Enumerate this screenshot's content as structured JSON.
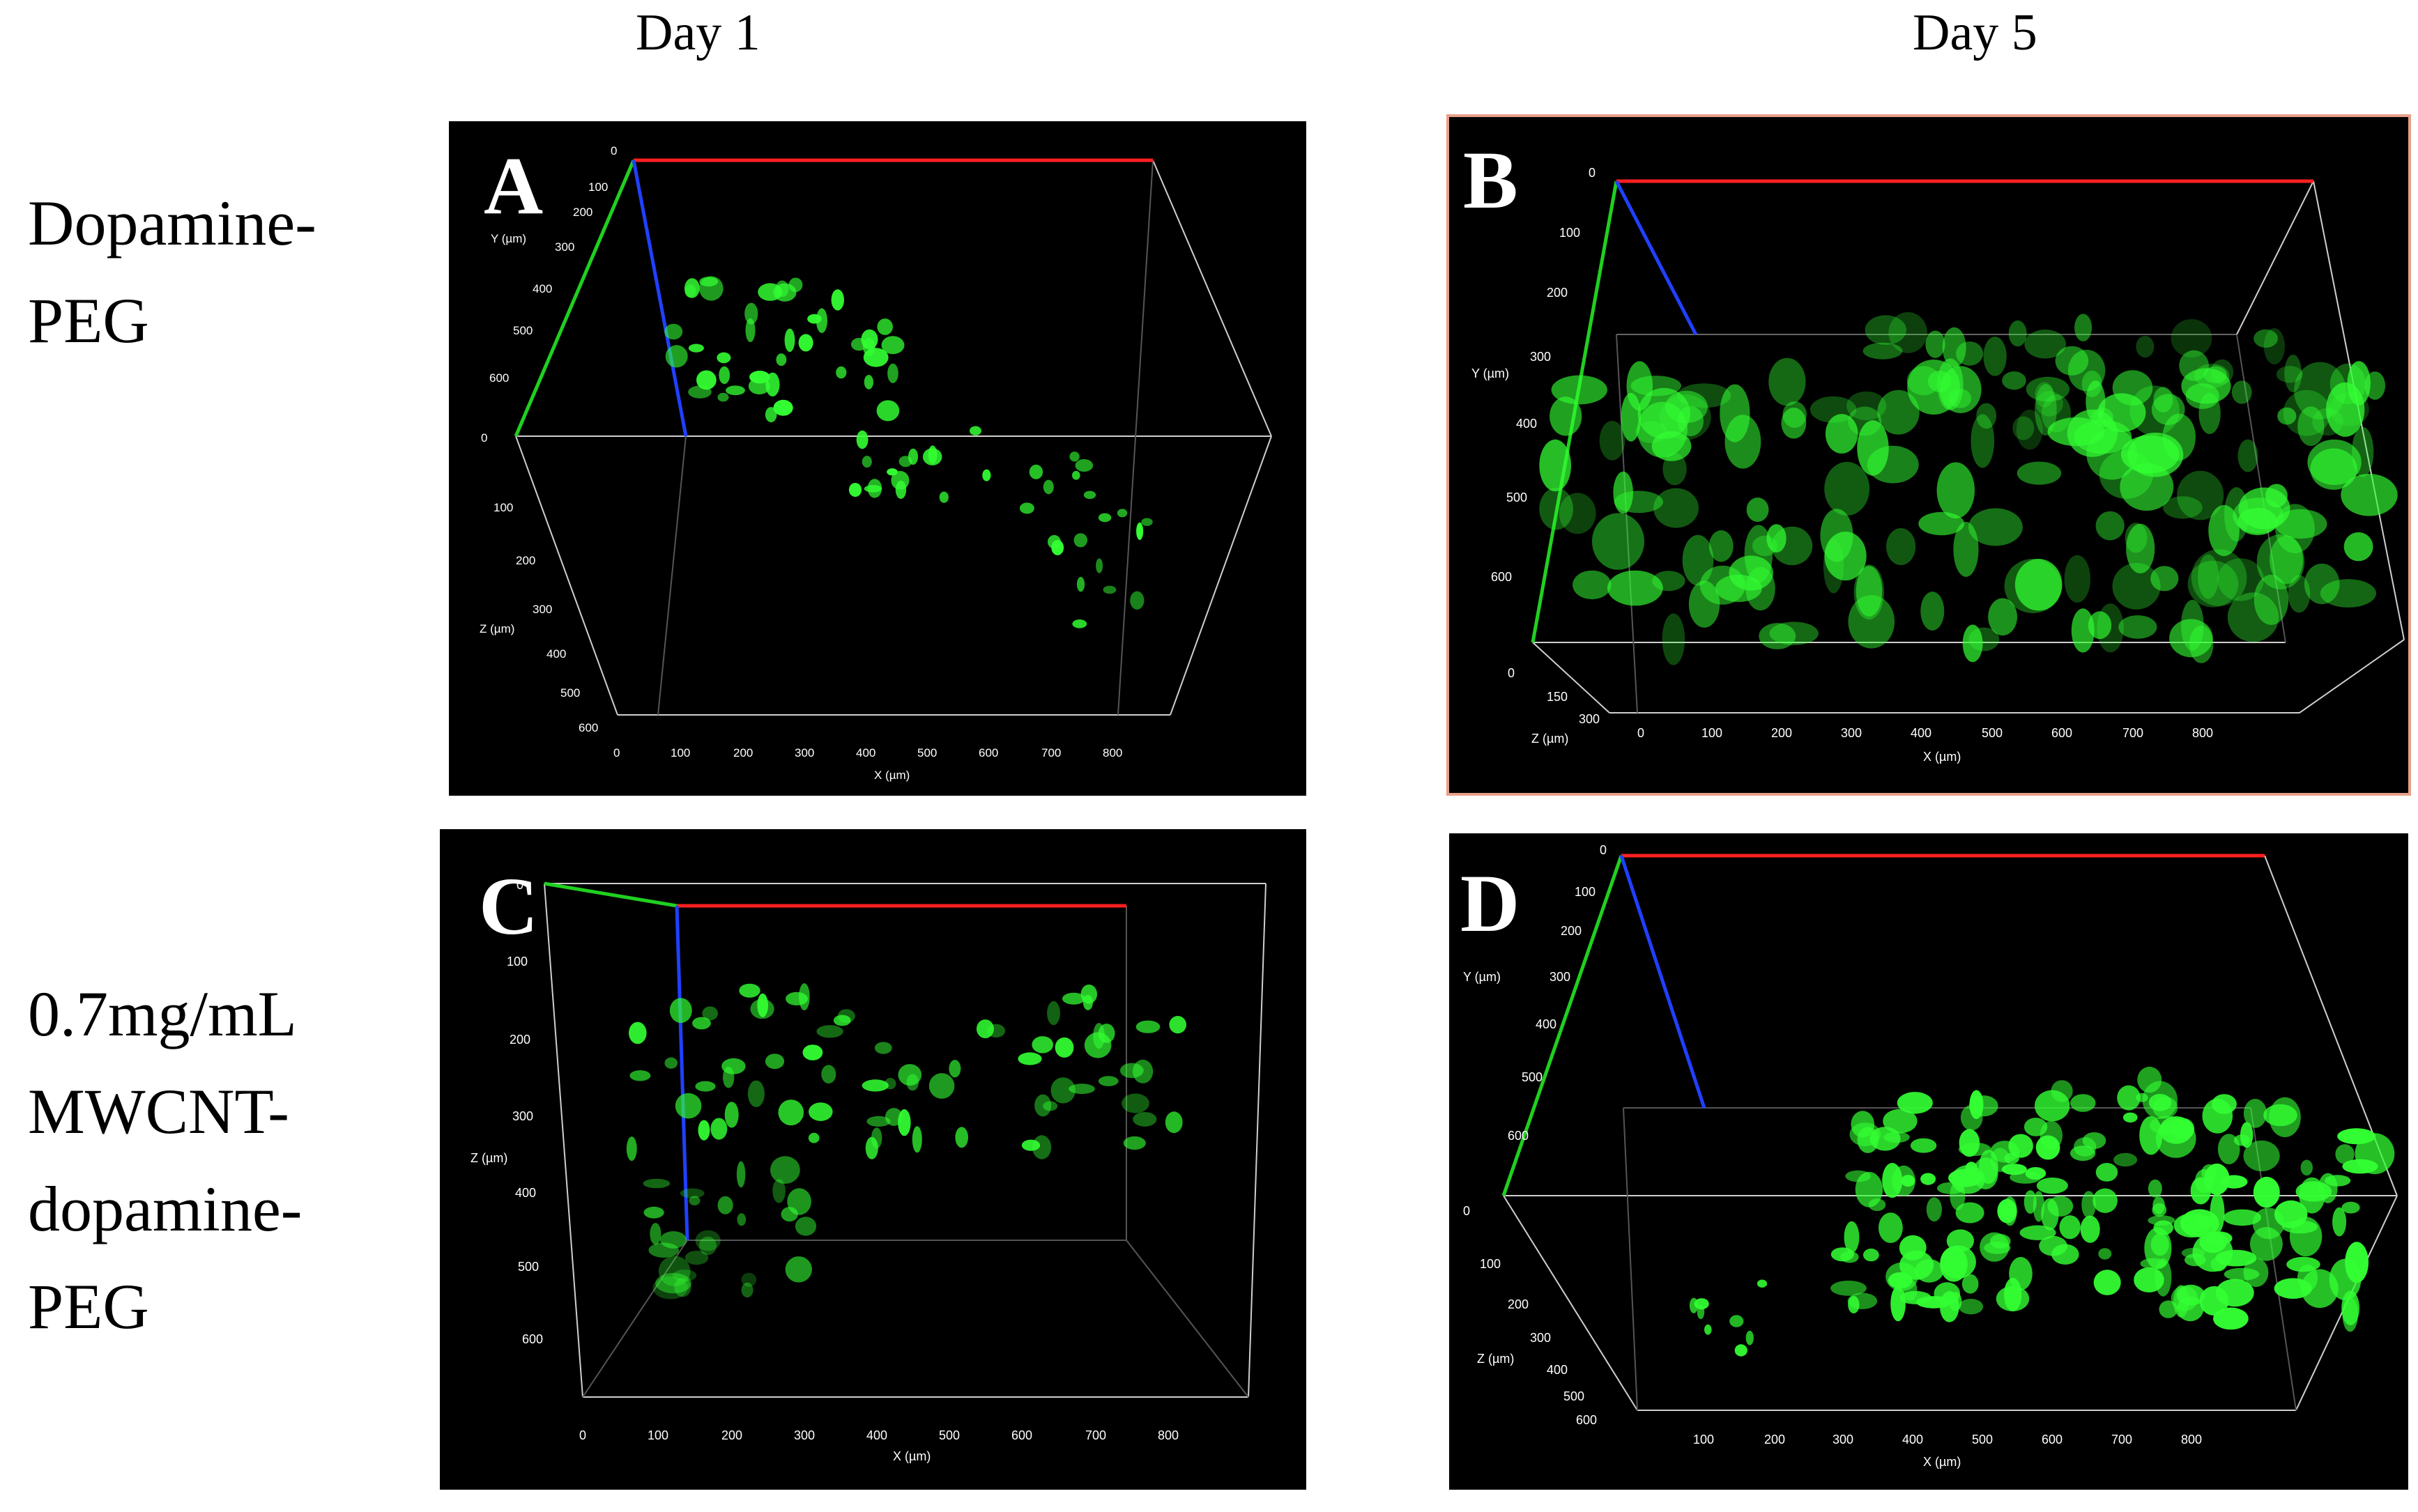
{
  "columns": {
    "day1": "Day 1",
    "day5": "Day 5"
  },
  "rows": {
    "row1": "Dopamine-\nPEG",
    "row2": "0.7mg/mL\nMWCNT-\ndopamine-\nPEG"
  },
  "panels": {
    "A": {
      "letter": "A",
      "y_axis_label": "Y (µm)",
      "z_axis_label": "Z (µm)",
      "x_axis_label": "X (µm)",
      "y_ticks": [
        "0",
        "100",
        "200",
        "300",
        "400",
        "500",
        "600"
      ],
      "z_ticks": [
        "0",
        "100",
        "200",
        "300",
        "400",
        "500",
        "600"
      ],
      "x_ticks": [
        "0",
        "100",
        "200",
        "300",
        "400",
        "500",
        "600",
        "700",
        "800"
      ]
    },
    "B": {
      "letter": "B",
      "y_axis_label": "Y (µm)",
      "z_axis_label": "Z (µm)",
      "x_axis_label": "X (µm)",
      "y_ticks": [
        "0",
        "100",
        "200",
        "300",
        "400",
        "500",
        "600"
      ],
      "z_ticks": [
        "0",
        "150",
        "300"
      ],
      "x_ticks": [
        "0",
        "100",
        "200",
        "300",
        "400",
        "500",
        "600",
        "700",
        "800"
      ]
    },
    "C": {
      "letter": "C",
      "z_axis_label": "Z (µm)",
      "x_axis_label": "X (µm)",
      "z_ticks": [
        "0",
        "100",
        "200",
        "300",
        "400",
        "500",
        "600"
      ],
      "x_ticks": [
        "0",
        "100",
        "200",
        "300",
        "400",
        "500",
        "600",
        "700",
        "800"
      ]
    },
    "D": {
      "letter": "D",
      "y_axis_label": "Y (µm)",
      "z_axis_label": "Z (µm)",
      "x_axis_label": "X (µm)",
      "y_ticks": [
        "0",
        "100",
        "200",
        "300",
        "400",
        "500",
        "600"
      ],
      "z_ticks": [
        "0",
        "100",
        "200",
        "300",
        "400",
        "500",
        "600"
      ],
      "x_ticks": [
        "100",
        "200",
        "300",
        "400",
        "500",
        "600",
        "700",
        "800"
      ]
    }
  },
  "colors": {
    "x_axis": "#ff2020",
    "y_axis": "#20d020",
    "z_axis": "#2040ff",
    "fluorescence": "#33ff33",
    "frame": "#cfcfcf",
    "panel_bg": "#000000"
  }
}
